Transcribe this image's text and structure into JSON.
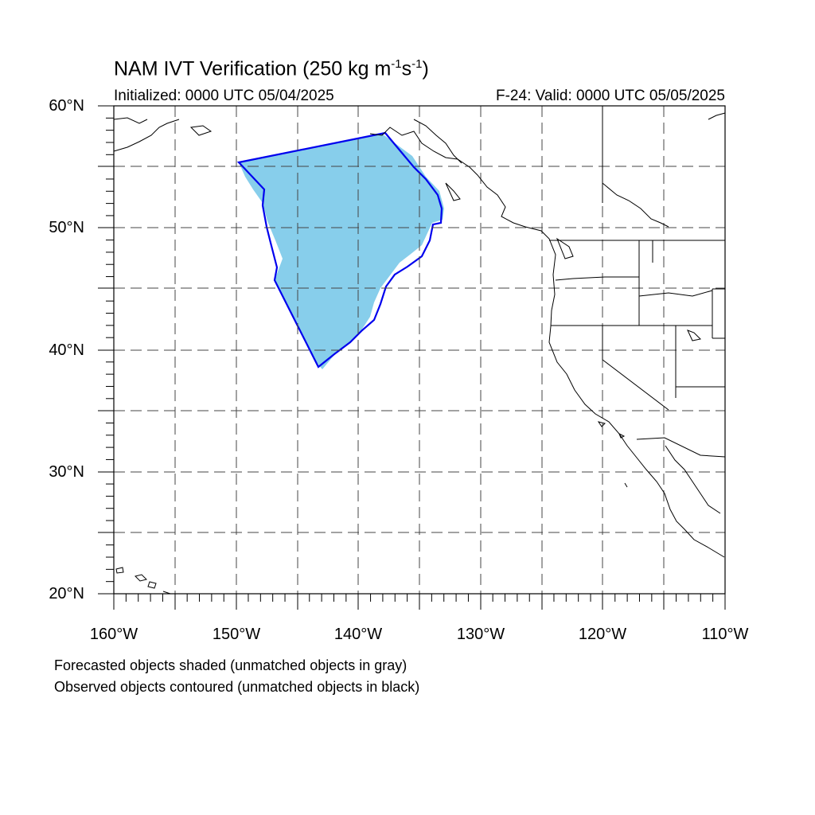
{
  "title": {
    "prefix": "NAM IVT Verification (250 kg m",
    "exp1": "-1",
    "mid": "s",
    "exp2": "-1",
    "suffix": ")"
  },
  "initialized": "Initialized: 0000 UTC 05/04/2025",
  "valid": "F-24: Valid: 0000 UTC 05/05/2025",
  "lat_labels": [
    "60°N",
    "50°N",
    "40°N",
    "30°N",
    "20°N"
  ],
  "lon_labels": [
    "160°W",
    "150°W",
    "140°W",
    "130°W",
    "120°W",
    "110°W"
  ],
  "footnote_1": "Forecasted objects shaded (unmatched objects in gray)",
  "footnote_2": "Observed objects contoured (unmatched objects in black)",
  "colors": {
    "forecast_fill": "#87ceeb",
    "observed_contour": "#0000ee",
    "grid": "#555555",
    "coastline": "#000000"
  },
  "map_extent": {
    "lon_min": -160,
    "lon_max": -110,
    "lat_min": 20,
    "lat_max": 60
  }
}
